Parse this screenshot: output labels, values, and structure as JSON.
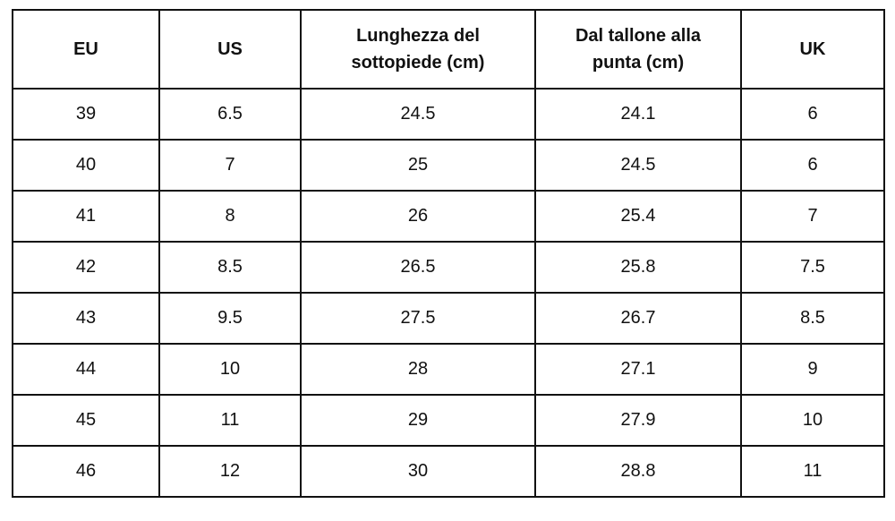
{
  "table": {
    "header": [
      "EU",
      "US",
      "Lunghezza del sottopiede (cm)",
      "Dal tallone alla punta (cm)",
      "UK"
    ],
    "rows": [
      [
        39,
        6.5,
        24.5,
        24.1,
        6
      ],
      [
        40,
        7,
        25,
        24.5,
        6
      ],
      [
        41,
        8,
        26,
        25.4,
        7
      ],
      [
        42,
        8.5,
        26.5,
        25.8,
        7.5
      ],
      [
        43,
        9.5,
        27.5,
        26.7,
        8.5
      ],
      [
        44,
        10,
        28,
        27.1,
        9
      ],
      [
        45,
        11,
        29,
        27.9,
        10
      ],
      [
        46,
        12,
        30,
        28.8,
        11
      ]
    ]
  }
}
